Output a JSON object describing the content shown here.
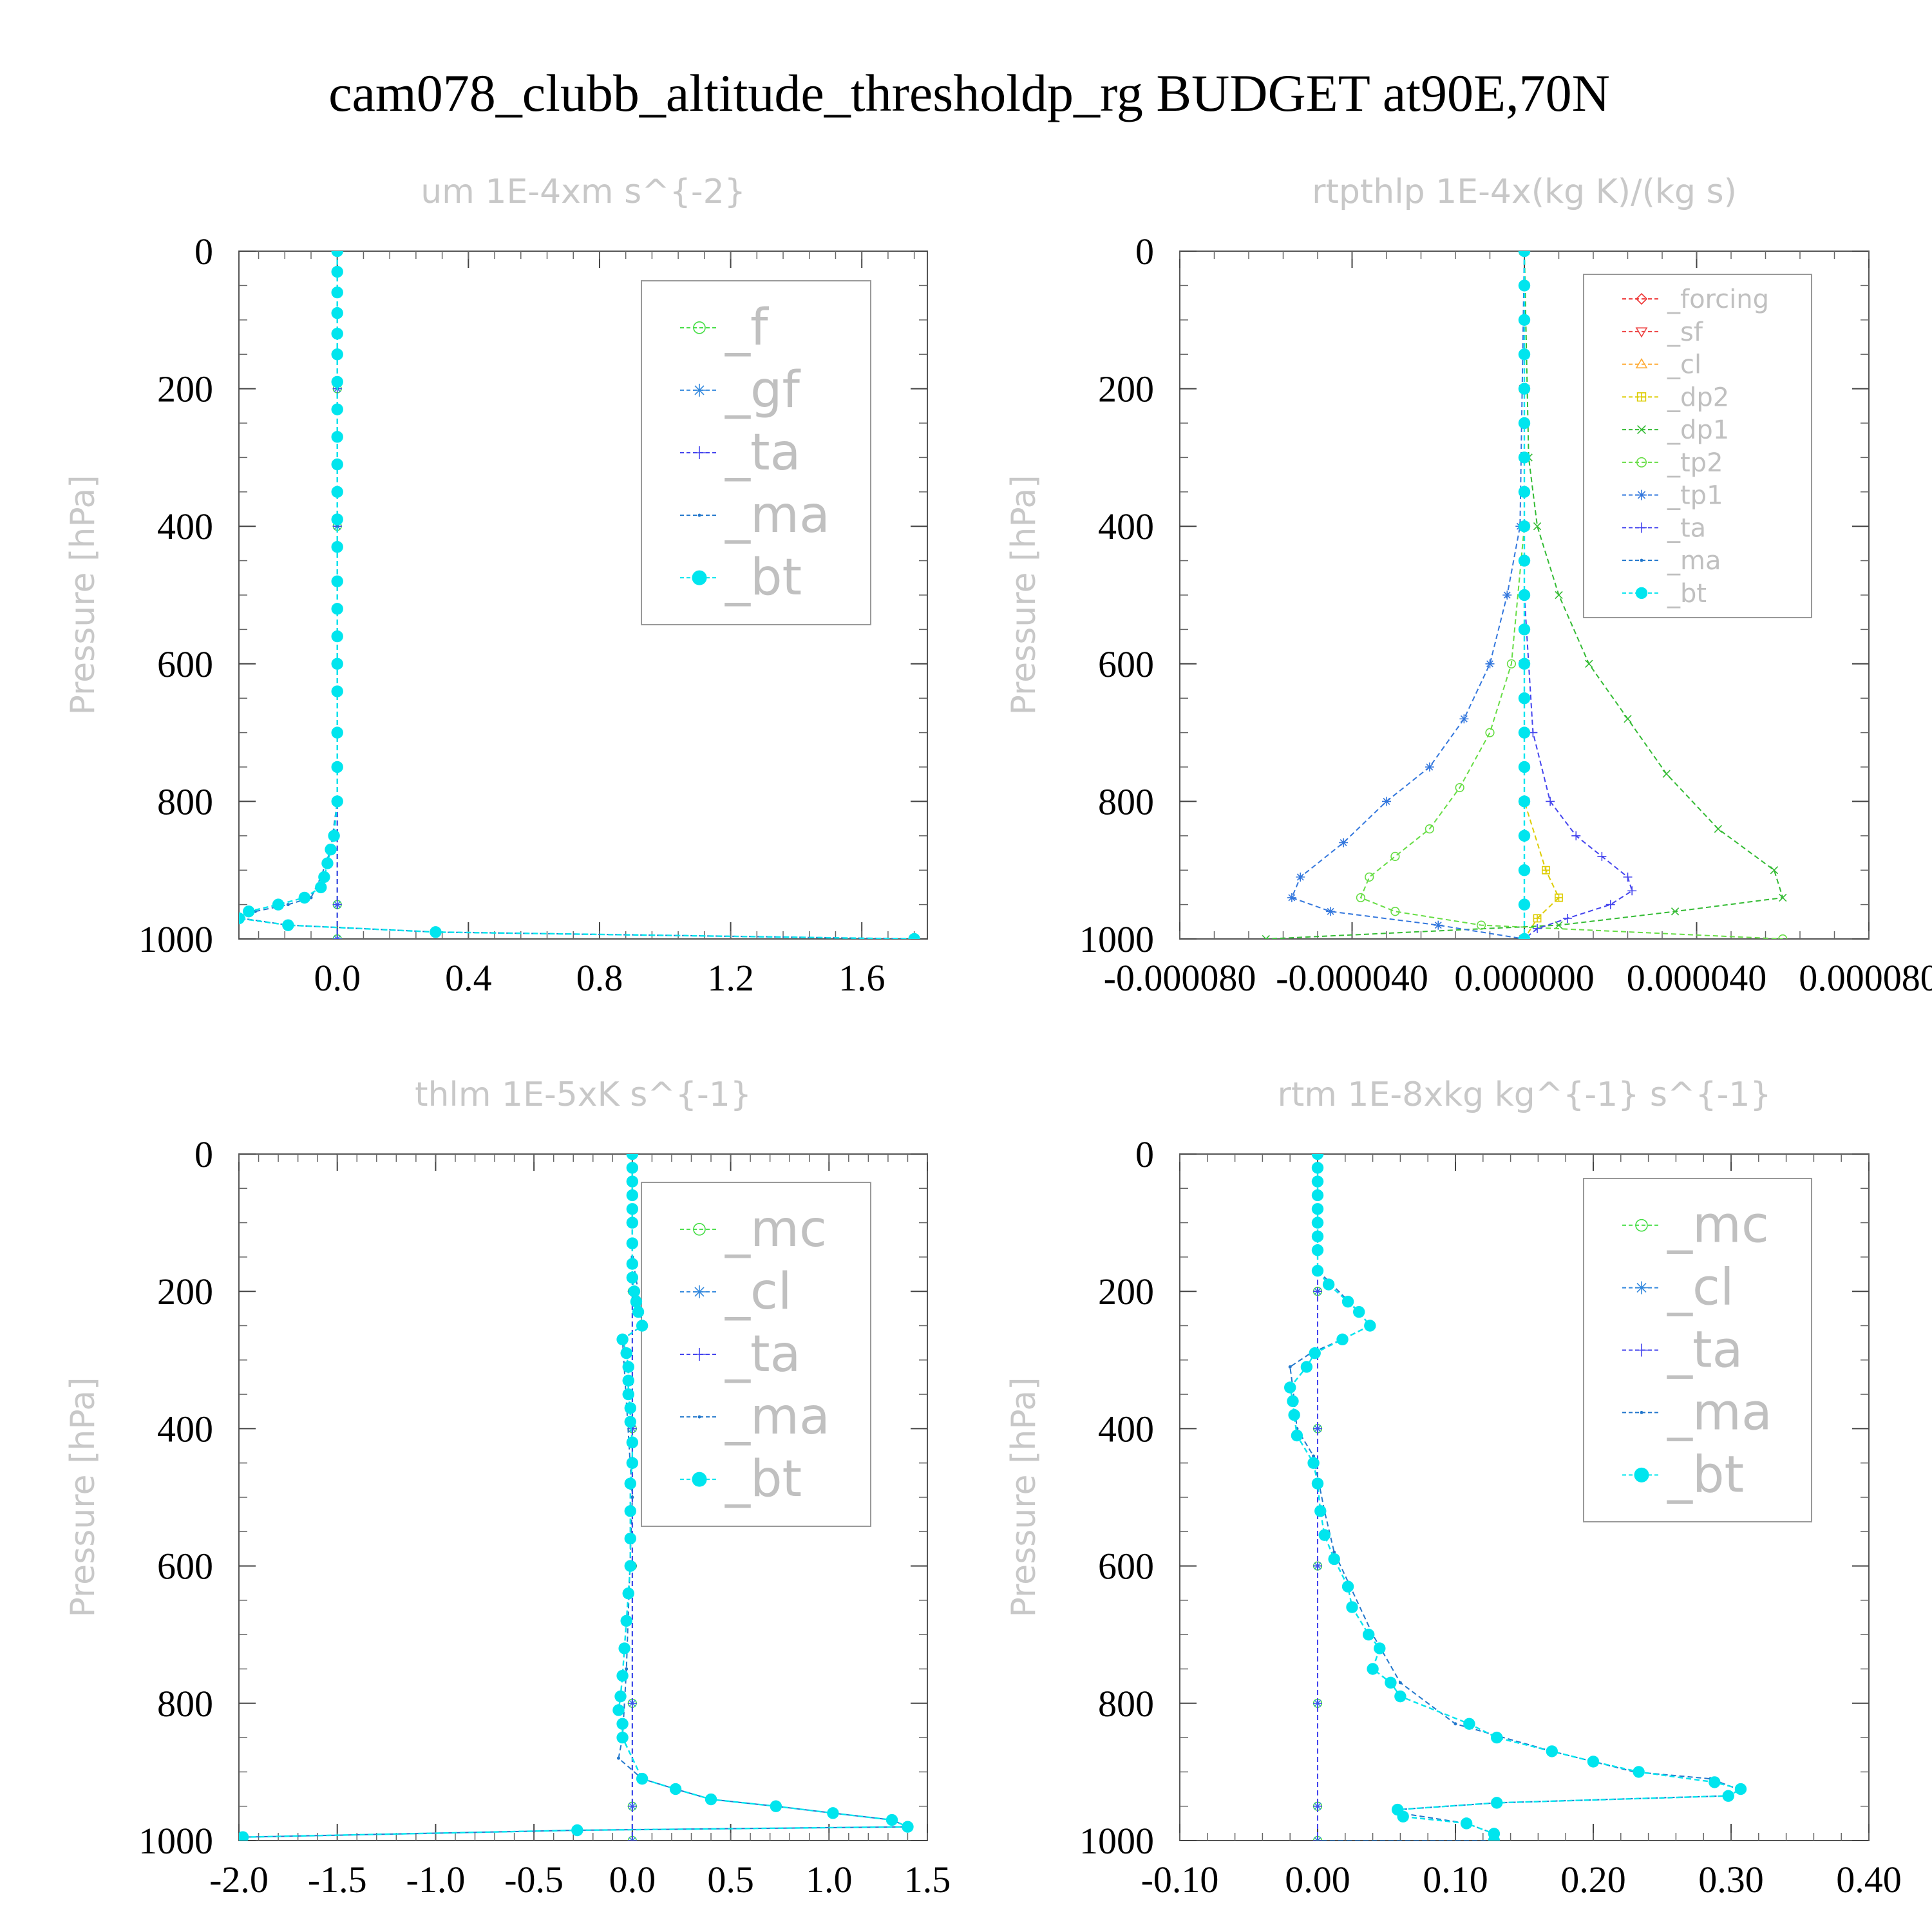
{
  "figure": {
    "title": "cam078_clubb_altitude_thresholdp_rg  BUDGET at90E,70N"
  },
  "chart_data": [
    {
      "type": "line",
      "title": "um  1E-4xm s^{-2}",
      "ylabel": "Pressure [hPa]",
      "xlabel": "",
      "xlim": [
        -0.3,
        1.8
      ],
      "ylim": [
        1000,
        0
      ],
      "xticks": [
        "0.0",
        "0.4",
        "0.8",
        "1.2",
        "1.6"
      ],
      "xtick_values": [
        0.0,
        0.4,
        0.8,
        1.2,
        1.6
      ],
      "yticks": [
        "0",
        "200",
        "400",
        "600",
        "800",
        "1000"
      ],
      "legend_position": "top-right",
      "legend": [
        "_f",
        "_gf",
        "_ta",
        "_ma",
        "_bt"
      ],
      "series": [
        {
          "name": "_f",
          "color": "#44dd44",
          "marker": "circle-open",
          "x": [
            0,
            0,
            0,
            0,
            0,
            0,
            0
          ],
          "y": [
            0,
            200,
            400,
            600,
            800,
            950,
            1000
          ]
        },
        {
          "name": "_gf",
          "color": "#3388dd",
          "marker": "star",
          "x": [
            0,
            0,
            0,
            0,
            0,
            0,
            0
          ],
          "y": [
            0,
            200,
            400,
            600,
            800,
            950,
            1000
          ]
        },
        {
          "name": "_ta",
          "color": "#4444ee",
          "marker": "plus",
          "x": [
            0,
            0,
            0,
            0,
            0,
            0,
            0
          ],
          "y": [
            0,
            200,
            400,
            600,
            800,
            950,
            1000
          ]
        },
        {
          "name": "_ma",
          "color": "#2277cc",
          "marker": "dot",
          "x": [
            0,
            0,
            0,
            0,
            0,
            -0.02,
            -0.05,
            -0.08,
            -0.15,
            -0.25,
            -0.29,
            -0.15,
            0.3,
            1.76
          ],
          "y": [
            0,
            200,
            400,
            600,
            800,
            870,
            910,
            940,
            950,
            960,
            970,
            980,
            990,
            1000
          ]
        },
        {
          "name": "_bt",
          "color": "#00e5ee",
          "marker": "filled-circle",
          "x": [
            0,
            0,
            0,
            0,
            0,
            0,
            0,
            0,
            0,
            0,
            0,
            0,
            0,
            0,
            0,
            0,
            0,
            0,
            0,
            0,
            0,
            -0.01,
            -0.02,
            -0.03,
            -0.04,
            -0.05,
            -0.1,
            -0.18,
            -0.27,
            -0.3,
            -0.15,
            0.3,
            1.76
          ],
          "y": [
            0,
            30,
            60,
            90,
            120,
            150,
            190,
            230,
            270,
            310,
            350,
            390,
            430,
            480,
            520,
            560,
            600,
            640,
            700,
            750,
            800,
            850,
            870,
            890,
            910,
            925,
            940,
            950,
            960,
            970,
            980,
            990,
            1000
          ]
        }
      ]
    },
    {
      "type": "line",
      "title": "rtpthlp  1E-4x(kg K)/(kg s)",
      "ylabel": "Pressure [hPa]",
      "xlabel": "",
      "xlim": [
        -8e-05,
        8e-05
      ],
      "ylim": [
        1000,
        0
      ],
      "xticks": [
        "-0.000080",
        "-0.000040",
        "0.000000",
        "0.000040",
        "0.000080"
      ],
      "xtick_values": [
        -8e-05,
        -4e-05,
        0.0,
        4e-05,
        8e-05
      ],
      "yticks": [
        "0",
        "200",
        "400",
        "600",
        "800",
        "1000"
      ],
      "legend_position": "top-right",
      "legend": [
        "_forcing",
        "_sf",
        "_cl",
        "_dp2",
        "_dp1",
        "_tp2",
        "_tp1",
        "_ta",
        "_ma",
        "_bt"
      ],
      "series": [
        {
          "name": "_forcing",
          "color": "#ee3333",
          "marker": "diamond",
          "x": [
            0,
            0,
            0,
            0,
            0,
            0
          ],
          "y": [
            0,
            200,
            400,
            600,
            800,
            1000
          ]
        },
        {
          "name": "_sf",
          "color": "#ee4444",
          "marker": "triangle-down",
          "x": [
            0,
            0,
            0,
            0,
            0,
            0
          ],
          "y": [
            0,
            200,
            400,
            600,
            800,
            1000
          ]
        },
        {
          "name": "_cl",
          "color": "#ffaa33",
          "marker": "triangle-up",
          "x": [
            0,
            0,
            0,
            0,
            0,
            0
          ],
          "y": [
            0,
            200,
            400,
            600,
            800,
            1000
          ]
        },
        {
          "name": "_dp2",
          "color": "#ddcc00",
          "marker": "square-plus",
          "x": [
            0,
            0,
            0,
            0,
            0,
            5e-06,
            8e-06,
            3e-06,
            0
          ],
          "y": [
            0,
            200,
            400,
            600,
            800,
            900,
            940,
            970,
            1000
          ]
        },
        {
          "name": "_dp1",
          "color": "#33bb33",
          "marker": "cross",
          "x": [
            0,
            1e-06,
            3e-06,
            8e-06,
            1.5e-05,
            2.4e-05,
            3.3e-05,
            4.5e-05,
            5.8e-05,
            6e-05,
            3.5e-05,
            8e-06,
            -6e-05
          ],
          "y": [
            0,
            300,
            400,
            500,
            600,
            680,
            760,
            840,
            900,
            940,
            960,
            980,
            1000
          ]
        },
        {
          "name": "_tp2",
          "color": "#66dd44",
          "marker": "circle-open",
          "x": [
            0,
            0,
            -3e-06,
            -8e-06,
            -1.5e-05,
            -2.2e-05,
            -3e-05,
            -3.6e-05,
            -3.8e-05,
            -3e-05,
            -1e-05,
            6e-05
          ],
          "y": [
            0,
            400,
            600,
            700,
            780,
            840,
            880,
            910,
            940,
            960,
            980,
            1000
          ]
        },
        {
          "name": "_tp1",
          "color": "#3377dd",
          "marker": "star",
          "x": [
            0,
            -1e-06,
            -4e-06,
            -8e-06,
            -1.4e-05,
            -2.2e-05,
            -3.2e-05,
            -4.2e-05,
            -5.2e-05,
            -5.4e-05,
            -4.5e-05,
            -2e-05,
            0
          ],
          "y": [
            0,
            400,
            500,
            600,
            680,
            750,
            800,
            860,
            910,
            940,
            960,
            980,
            1000
          ]
        },
        {
          "name": "_ta",
          "color": "#4444ee",
          "marker": "plus",
          "x": [
            0,
            0,
            2e-06,
            6e-06,
            1.2e-05,
            1.8e-05,
            2.4e-05,
            2.5e-05,
            2e-05,
            1e-05,
            3e-06,
            0
          ],
          "y": [
            0,
            500,
            700,
            800,
            850,
            880,
            910,
            930,
            950,
            970,
            985,
            1000
          ]
        },
        {
          "name": "_ma",
          "color": "#2277cc",
          "marker": "dot",
          "x": [
            0,
            0,
            0,
            0,
            0,
            0
          ],
          "y": [
            0,
            200,
            400,
            600,
            800,
            1000
          ]
        },
        {
          "name": "_bt",
          "color": "#00e5ee",
          "marker": "filled-circle",
          "x": [
            0,
            0,
            0,
            0,
            0,
            0,
            0,
            0,
            0,
            0,
            0,
            0,
            0,
            0,
            0,
            0,
            0,
            0,
            0,
            0,
            0
          ],
          "y": [
            0,
            50,
            100,
            150,
            200,
            250,
            300,
            350,
            400,
            450,
            500,
            550,
            600,
            650,
            700,
            750,
            800,
            850,
            900,
            950,
            1000
          ]
        }
      ]
    },
    {
      "type": "line",
      "title": "thlm  1E-5xK s^{-1}",
      "ylabel": "Pressure [hPa]",
      "xlabel": "",
      "xlim": [
        -2.0,
        1.5
      ],
      "ylim": [
        1000,
        0
      ],
      "xticks": [
        "-2.0",
        "-1.5",
        "-1.0",
        "-0.5",
        "0.0",
        "0.5",
        "1.0",
        "1.5"
      ],
      "xtick_values": [
        -2.0,
        -1.5,
        -1.0,
        -0.5,
        0.0,
        0.5,
        1.0,
        1.5
      ],
      "yticks": [
        "0",
        "200",
        "400",
        "600",
        "800",
        "1000"
      ],
      "legend_position": "top-right",
      "legend": [
        "_mc",
        "_cl",
        "_ta",
        "_ma",
        "_bt"
      ],
      "series": [
        {
          "name": "_mc",
          "color": "#44dd44",
          "marker": "circle-open",
          "x": [
            0,
            0,
            0,
            0,
            0,
            0,
            0
          ],
          "y": [
            0,
            200,
            400,
            600,
            800,
            950,
            1000
          ]
        },
        {
          "name": "_cl",
          "color": "#3388dd",
          "marker": "star",
          "x": [
            0,
            0,
            0,
            0,
            0,
            0,
            0
          ],
          "y": [
            0,
            200,
            400,
            600,
            800,
            950,
            1000
          ]
        },
        {
          "name": "_ta",
          "color": "#4444ee",
          "marker": "plus",
          "x": [
            0,
            0,
            0,
            0,
            0,
            0,
            0
          ],
          "y": [
            0,
            200,
            400,
            600,
            800,
            950,
            1000
          ]
        },
        {
          "name": "_ma",
          "color": "#2277cc",
          "marker": "dot",
          "x": [
            0,
            0,
            0.03,
            0.05,
            -0.05,
            0,
            -0.03,
            -0.05,
            -0.07,
            0.05,
            0.22,
            0.4,
            0.73,
            1.02,
            1.32,
            1.4,
            -0.28,
            -1.98
          ],
          "y": [
            0,
            150,
            200,
            250,
            270,
            500,
            750,
            850,
            880,
            910,
            925,
            940,
            950,
            960,
            970,
            980,
            985,
            995
          ]
        },
        {
          "name": "_bt",
          "color": "#00e5ee",
          "marker": "filled-circle",
          "x": [
            0,
            0,
            0,
            0,
            0,
            0,
            0,
            0,
            0,
            0.01,
            0.02,
            0.03,
            0.05,
            -0.05,
            -0.03,
            -0.02,
            -0.02,
            -0.02,
            -0.01,
            -0.01,
            0,
            0,
            -0.01,
            -0.01,
            -0.01,
            -0.01,
            -0.02,
            -0.03,
            -0.04,
            -0.05,
            -0.06,
            -0.07,
            -0.05,
            -0.05,
            0.05,
            0.22,
            0.4,
            0.73,
            1.02,
            1.32,
            1.4,
            -0.28,
            -1.98
          ],
          "y": [
            0,
            20,
            40,
            60,
            80,
            100,
            130,
            160,
            180,
            200,
            215,
            230,
            250,
            270,
            290,
            310,
            330,
            350,
            370,
            390,
            420,
            450,
            480,
            520,
            560,
            600,
            640,
            680,
            720,
            760,
            790,
            810,
            830,
            850,
            910,
            925,
            940,
            950,
            960,
            970,
            980,
            985,
            995
          ]
        }
      ]
    },
    {
      "type": "line",
      "title": "rtm  1E-8xkg kg^{-1} s^{-1}",
      "ylabel": "Pressure [hPa]",
      "xlabel": "",
      "xlim": [
        -0.1,
        0.4
      ],
      "ylim": [
        1000,
        0
      ],
      "xticks": [
        "-0.10",
        "0.00",
        "0.10",
        "0.20",
        "0.30",
        "0.40"
      ],
      "xtick_values": [
        -0.1,
        0.0,
        0.1,
        0.2,
        0.3,
        0.4
      ],
      "yticks": [
        "0",
        "200",
        "400",
        "600",
        "800",
        "1000"
      ],
      "legend_position": "top-right",
      "legend": [
        "_mc",
        "_cl",
        "_ta",
        "_ma",
        "_bt"
      ],
      "series": [
        {
          "name": "_mc",
          "color": "#44dd44",
          "marker": "circle-open",
          "x": [
            0,
            0,
            0,
            0,
            0,
            0,
            0
          ],
          "y": [
            0,
            200,
            400,
            600,
            800,
            950,
            1000
          ]
        },
        {
          "name": "_cl",
          "color": "#3388dd",
          "marker": "star",
          "x": [
            0,
            0,
            0,
            0,
            0,
            0,
            0
          ],
          "y": [
            0,
            200,
            400,
            600,
            800,
            950,
            1000
          ]
        },
        {
          "name": "_ta",
          "color": "#4444ee",
          "marker": "plus",
          "x": [
            0,
            0,
            0,
            0,
            0,
            0,
            0
          ],
          "y": [
            0,
            200,
            400,
            600,
            800,
            950,
            1000
          ]
        },
        {
          "name": "_ma",
          "color": "#2277cc",
          "marker": "dot",
          "x": [
            0,
            0,
            0.008,
            0.03,
            0.038,
            0.018,
            -0.005,
            -0.02,
            -0.018,
            -0.015,
            -0.003,
            0.005,
            0.012,
            0.04,
            0.06,
            0.1,
            0.17,
            0.23,
            0.285,
            0.305,
            0.295,
            0.13,
            0.058,
            0.06,
            0.108,
            0.128,
            0.128,
            0
          ],
          "y": [
            0,
            170,
            185,
            230,
            250,
            270,
            290,
            310,
            340,
            400,
            440,
            520,
            580,
            700,
            770,
            830,
            870,
            900,
            910,
            925,
            935,
            945,
            955,
            960,
            975,
            990,
            1000,
            1000
          ]
        },
        {
          "name": "_bt",
          "color": "#00e5ee",
          "marker": "filled-circle",
          "x": [
            0,
            0,
            0,
            0,
            0,
            0,
            0,
            0,
            0,
            0.008,
            0.022,
            0.03,
            0.038,
            0.018,
            -0.002,
            -0.008,
            -0.02,
            -0.018,
            -0.017,
            -0.015,
            -0.003,
            0,
            0.002,
            0.005,
            0.012,
            0.022,
            0.025,
            0.037,
            0.045,
            0.04,
            0.053,
            0.06,
            0.11,
            0.13,
            0.17,
            0.2,
            0.233,
            0.288,
            0.307,
            0.298,
            0.13,
            0.058,
            0.062,
            0.108,
            0.128,
            0.128
          ],
          "y": [
            0,
            20,
            40,
            60,
            80,
            100,
            120,
            140,
            170,
            190,
            215,
            230,
            250,
            270,
            290,
            310,
            340,
            360,
            380,
            410,
            450,
            480,
            520,
            555,
            590,
            630,
            660,
            700,
            720,
            750,
            770,
            790,
            830,
            850,
            870,
            885,
            900,
            915,
            925,
            935,
            945,
            955,
            965,
            975,
            990,
            1000
          ]
        }
      ]
    }
  ]
}
